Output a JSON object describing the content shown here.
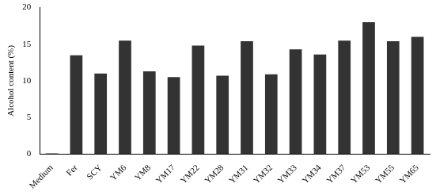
{
  "chart_data": {
    "type": "bar",
    "y_label": "Alcohol content (%)",
    "categories": [
      "Medium",
      "Fer",
      "SCY",
      "YM6",
      "YM8",
      "YM17",
      "YM22",
      "YM28",
      "YM31",
      "YM32",
      "YM33",
      "YM34",
      "YM37",
      "YM53",
      "YM55",
      "YM65"
    ],
    "values": [
      0.1,
      13.5,
      11.0,
      15.5,
      11.3,
      10.5,
      14.8,
      10.7,
      15.4,
      10.9,
      14.3,
      13.6,
      15.5,
      18.0,
      15.4,
      16.0
    ],
    "color": "#333333",
    "ylim": [
      0,
      20
    ],
    "yticks": [
      0,
      5,
      10,
      15,
      20
    ],
    "grid": false
  }
}
